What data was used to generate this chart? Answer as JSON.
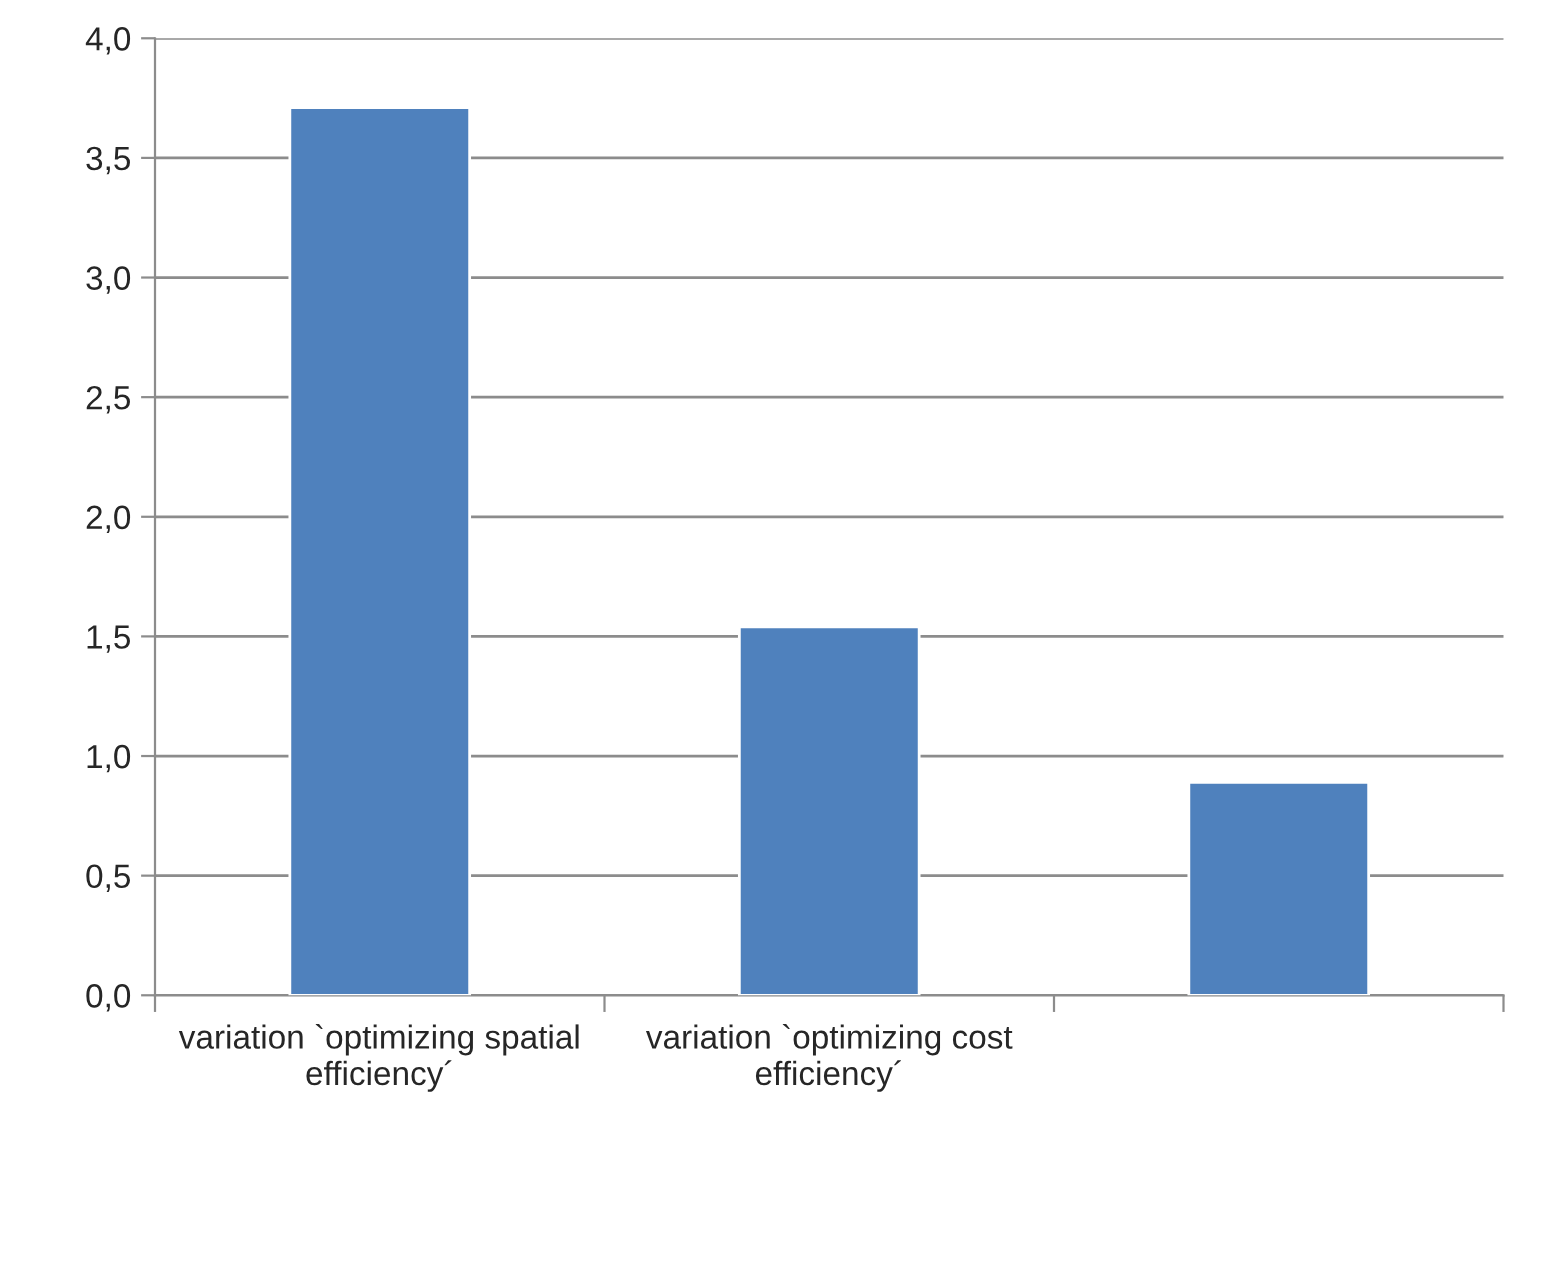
{
  "chart_data": {
    "type": "bar",
    "categories": [
      "variation `optimizing spatial efficiency´",
      "variation `optimizing cost efficiency´",
      null
    ],
    "values": [
      3.71,
      1.54,
      0.89
    ],
    "color": "#4f81bd",
    "ylim": [
      0,
      4
    ],
    "yticks": [
      {
        "value": 0,
        "label": "0,0"
      },
      {
        "value": 0.5,
        "label": "0,5"
      },
      {
        "value": 1,
        "label": "1,0"
      },
      {
        "value": 1.5,
        "label": "1,5"
      },
      {
        "value": 2,
        "label": "2,0"
      },
      {
        "value": 2.5,
        "label": "2,5"
      },
      {
        "value": 3,
        "label": "3,0"
      },
      {
        "value": 3.5,
        "label": "3,5"
      },
      {
        "value": 4,
        "label": "4,0"
      }
    ],
    "grid": "y",
    "legend": false
  }
}
